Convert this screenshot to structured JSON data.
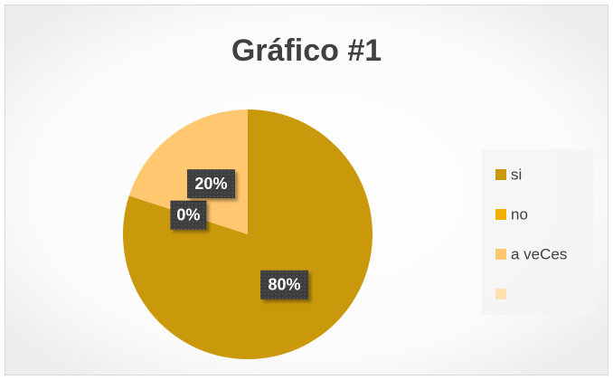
{
  "chart_data": {
    "type": "pie",
    "title": "Gráfico #1",
    "categories": [
      "si",
      "no",
      "a veCes",
      null
    ],
    "values": [
      80,
      0,
      20,
      0
    ],
    "value_labels": [
      "80%",
      "0%",
      "20%",
      null
    ],
    "colors": [
      "#c9980b",
      "#f0b000",
      "#ffc870",
      "#ffe0b0"
    ],
    "legend": "right"
  }
}
